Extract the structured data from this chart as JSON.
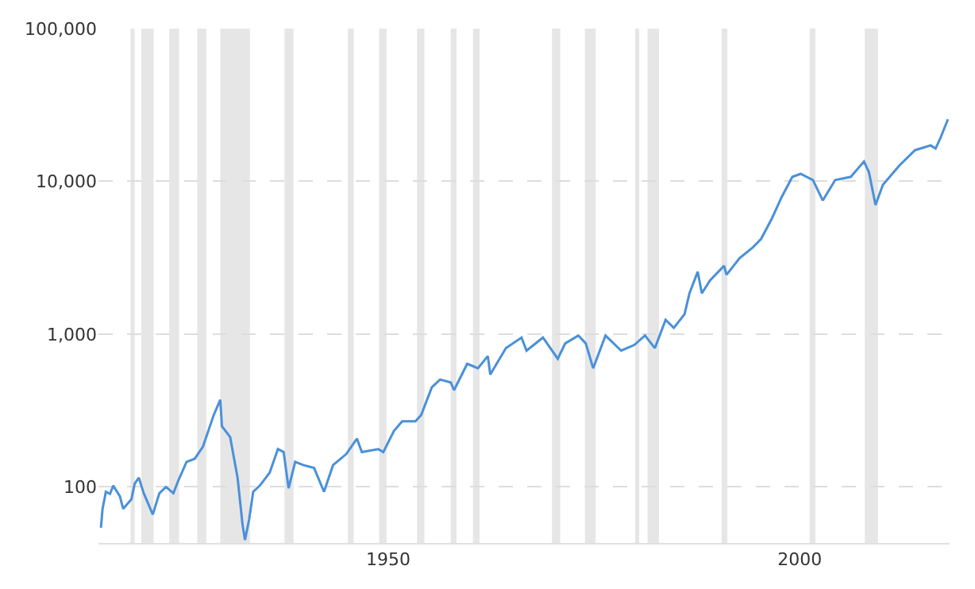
{
  "chart_data": {
    "type": "line",
    "log": "y",
    "grid": "y",
    "marker": "none",
    "line_style": "solid",
    "xlim": [
      1914.8,
      2018.2
    ],
    "xticks": [
      1950,
      2000
    ],
    "ylim": [
      43,
      100000
    ],
    "yticks": [
      {
        "value": 100,
        "label": "100"
      },
      {
        "value": 1000,
        "label": "1,000"
      },
      {
        "value": 10000,
        "label": "10,000"
      },
      {
        "value": 100000,
        "label": "100,000"
      }
    ],
    "bands": [
      {
        "axis": "x",
        "from": 1918.7,
        "to": 1919.2,
        "color": "#e6e6e6"
      },
      {
        "axis": "x",
        "from": 1920.0,
        "to": 1921.5,
        "color": "#e6e6e6"
      },
      {
        "axis": "x",
        "from": 1923.4,
        "to": 1924.6,
        "color": "#e6e6e6"
      },
      {
        "axis": "x",
        "from": 1926.8,
        "to": 1927.9,
        "color": "#e6e6e6"
      },
      {
        "axis": "x",
        "from": 1929.6,
        "to": 1933.2,
        "color": "#e6e6e6"
      },
      {
        "axis": "x",
        "from": 1937.4,
        "to": 1938.5,
        "color": "#e6e6e6"
      },
      {
        "axis": "x",
        "from": 1945.1,
        "to": 1945.8,
        "color": "#e6e6e6"
      },
      {
        "axis": "x",
        "from": 1948.9,
        "to": 1949.8,
        "color": "#e6e6e6"
      },
      {
        "axis": "x",
        "from": 1953.5,
        "to": 1954.4,
        "color": "#e6e6e6"
      },
      {
        "axis": "x",
        "from": 1957.6,
        "to": 1958.3,
        "color": "#e6e6e6"
      },
      {
        "axis": "x",
        "from": 1960.3,
        "to": 1961.1,
        "color": "#e6e6e6"
      },
      {
        "axis": "x",
        "from": 1969.9,
        "to": 1970.9,
        "color": "#e6e6e6"
      },
      {
        "axis": "x",
        "from": 1973.9,
        "to": 1975.2,
        "color": "#e6e6e6"
      },
      {
        "axis": "x",
        "from": 1980.0,
        "to": 1980.5,
        "color": "#e6e6e6"
      },
      {
        "axis": "x",
        "from": 1981.5,
        "to": 1982.9,
        "color": "#e6e6e6"
      },
      {
        "axis": "x",
        "from": 1990.5,
        "to": 1991.2,
        "color": "#e6e6e6"
      },
      {
        "axis": "x",
        "from": 2001.2,
        "to": 2001.9,
        "color": "#e6e6e6"
      },
      {
        "axis": "x",
        "from": 2007.9,
        "to": 2009.5,
        "color": "#e6e6e6"
      }
    ],
    "x": [
      1915.1,
      1915.3,
      1915.7,
      1916.2,
      1916.6,
      1917.4,
      1917.8,
      1918.8,
      1919.2,
      1919.7,
      1920.3,
      1921.4,
      1922.2,
      1923.0,
      1923.9,
      1924.5,
      1925.5,
      1926.5,
      1927.5,
      1928.8,
      1929.6,
      1929.8,
      1930.8,
      1931.7,
      1932.3,
      1932.6,
      1933.1,
      1933.6,
      1934.4,
      1935.6,
      1936.6,
      1937.3,
      1937.9,
      1938.7,
      1939.7,
      1941.0,
      1942.2,
      1943.3,
      1944.9,
      1946.2,
      1946.8,
      1948.8,
      1949.4,
      1950.7,
      1951.7,
      1953.3,
      1954.0,
      1955.3,
      1956.3,
      1957.6,
      1958.0,
      1959.6,
      1960.9,
      1962.1,
      1962.4,
      1964.3,
      1966.2,
      1966.8,
      1968.8,
      1970.6,
      1971.5,
      1973.1,
      1974.0,
      1974.9,
      1976.4,
      1978.3,
      1979.9,
      1981.2,
      1982.4,
      1983.7,
      1984.7,
      1986.0,
      1986.6,
      1987.6,
      1988.1,
      1989.1,
      1990.8,
      1991.1,
      1992.7,
      1994.3,
      1995.3,
      1996.6,
      1997.8,
      1999.1,
      2000.1,
      2001.6,
      2002.8,
      2004.3,
      2006.2,
      2007.8,
      2008.4,
      2009.2,
      2010.1,
      2012.1,
      2014.0,
      2015.9,
      2016.5,
      2017.1,
      2018.0
    ],
    "series": [
      {
        "color": "#4a90d9",
        "values": [
          54,
          72,
          93,
          90,
          102,
          87,
          72,
          83,
          105,
          115,
          91,
          66,
          91,
          100,
          91,
          110,
          146,
          153,
          184,
          295,
          372,
          250,
          212,
          115,
          57,
          45,
          61,
          93,
          102,
          124,
          177,
          169,
          98,
          146,
          139,
          133,
          93,
          139,
          164,
          207,
          169,
          177,
          169,
          233,
          269,
          269,
          295,
          449,
          505,
          483,
          430,
          640,
          598,
          718,
          545,
          810,
          950,
          780,
          950,
          690,
          870,
          980,
          870,
          598,
          980,
          780,
          850,
          980,
          810,
          1240,
          1100,
          1350,
          1850,
          2560,
          1850,
          2250,
          2800,
          2450,
          3150,
          3700,
          4200,
          5700,
          7900,
          10700,
          11200,
          10200,
          7500,
          10200,
          10700,
          13500,
          11500,
          7000,
          9500,
          12700,
          16000,
          17200,
          16400,
          19300,
          25500
        ]
      }
    ]
  }
}
